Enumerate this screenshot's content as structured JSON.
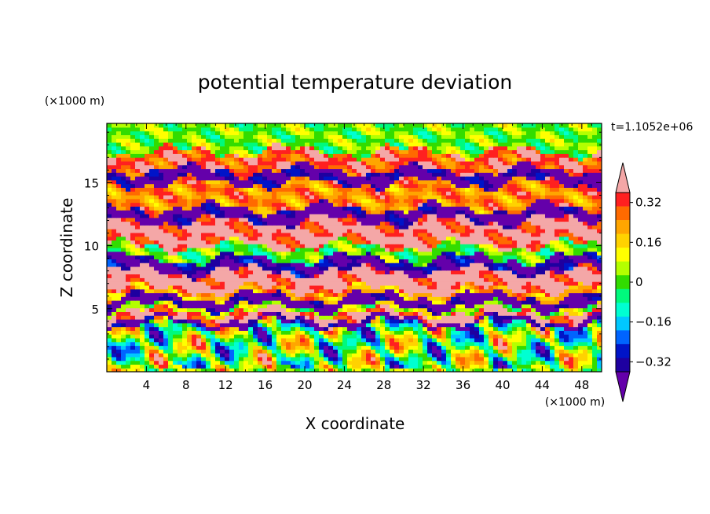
{
  "chart_data": {
    "type": "heatmap",
    "title": "potential temperature deviation",
    "xlabel": "X coordinate",
    "ylabel": "Z coordinate",
    "x_unit": "(×1000 m)",
    "y_unit": "(×1000 m)",
    "time_label": "t=1.1052e+06",
    "xlim": [
      0,
      50
    ],
    "ylim": [
      0,
      19.7
    ],
    "x_ticks": [
      4,
      8,
      12,
      16,
      20,
      24,
      28,
      32,
      36,
      40,
      44,
      48
    ],
    "y_ticks": [
      5,
      10,
      15
    ],
    "levels": [
      -0.4,
      -0.36,
      -0.32,
      -0.28,
      -0.24,
      -0.2,
      -0.16,
      -0.12,
      -0.08,
      -0.04,
      0,
      0.04,
      0.08,
      0.12,
      0.16,
      0.2,
      0.24,
      0.28,
      0.32,
      0.36,
      0.4
    ],
    "colorbar_labels": [
      "0.32",
      "0.16",
      "0",
      "−0.16",
      "−0.32"
    ],
    "colorbar_label_values": [
      0.32,
      0.16,
      0,
      -0.16,
      -0.32
    ],
    "colorbar_colors_top_to_bottom": [
      "#f4a7a7",
      "#ff2020",
      "#ff6a00",
      "#ffa500",
      "#ffd200",
      "#ffff00",
      "#b4ff00",
      "#32dc00",
      "#00fa7d",
      "#00ffd2",
      "#00c8ff",
      "#0064ff",
      "#0014c8",
      "#1e00a0",
      "#6400aa"
    ],
    "bands": [
      {
        "z": [
          0,
          3.8
        ],
        "value": 0.05,
        "pattern": "plumes"
      },
      {
        "z": [
          3.8,
          4.2
        ],
        "value": -0.38
      },
      {
        "z": [
          4.2,
          4.8
        ],
        "value": 0.36
      },
      {
        "z": [
          4.8,
          5.2
        ],
        "value": 0.05
      },
      {
        "z": [
          5.2,
          6.0
        ],
        "value": -0.4
      },
      {
        "z": [
          6.0,
          6.5
        ],
        "value": 0.2
      },
      {
        "z": [
          6.5,
          8.0
        ],
        "value": 0.38
      },
      {
        "z": [
          8.0,
          9.0
        ],
        "value": -0.34
      },
      {
        "z": [
          9.0,
          10.0
        ],
        "value": 0.0
      },
      {
        "z": [
          10.0,
          12.0
        ],
        "value": 0.36
      },
      {
        "z": [
          12.0,
          13.0
        ],
        "value": -0.38
      },
      {
        "z": [
          13.0,
          15.0
        ],
        "value": 0.24
      },
      {
        "z": [
          15.0,
          16.0
        ],
        "value": -0.36
      },
      {
        "z": [
          16.0,
          17.5
        ],
        "value": 0.3
      },
      {
        "z": [
          17.5,
          19.7
        ],
        "value": 0.02
      }
    ]
  }
}
